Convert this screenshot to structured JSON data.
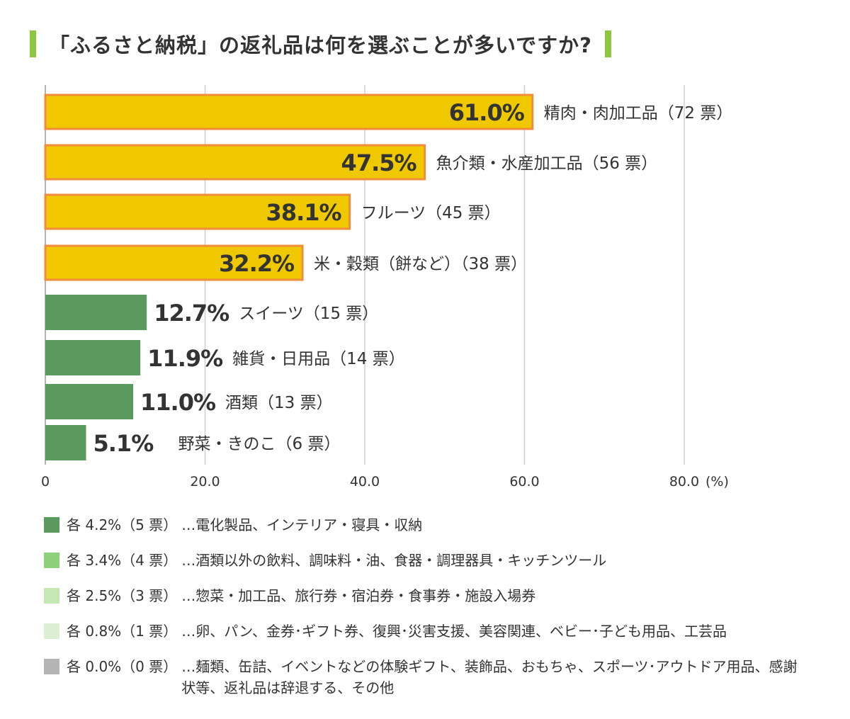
{
  "title": "「ふるさと納税」の返礼品は何を選ぶことが多いですか?",
  "colors": {
    "accent": "#8dc63f",
    "top_bar_fill": "#f0c800",
    "top_bar_stroke": "#f08c3c",
    "other_bar_fill": "#5a9a5f",
    "gridline": "#d0d0d0",
    "axis": "#999999"
  },
  "chart_data": {
    "type": "bar",
    "orientation": "horizontal",
    "categories": [
      "精肉・肉加工品（72 票）",
      "魚介類・水産加工品（56 票）",
      "フルーツ（45 票）",
      "米・穀類（餅など）（38 票）",
      "スイーツ（15 票）",
      "雑貨・日用品（14 票）",
      "酒類（13 票）",
      "野菜・きのこ（6 票）"
    ],
    "values": [
      61.0,
      47.5,
      38.1,
      32.2,
      12.7,
      11.9,
      11.0,
      5.1
    ],
    "value_labels": [
      "61.0%",
      "47.5%",
      "38.1%",
      "32.2%",
      "12.7%",
      "11.9%",
      "11.0%",
      "5.1%"
    ],
    "highlight": [
      true,
      true,
      true,
      true,
      false,
      false,
      false,
      false
    ],
    "xlim": [
      0,
      80
    ],
    "xticks": [
      0,
      20,
      40,
      60,
      80
    ],
    "xtick_labels": [
      "0",
      "20.0",
      "40.0",
      "60.0",
      "80.0"
    ],
    "xunit": "(%)",
    "grid": true
  },
  "legend": [
    {
      "label": "各 4.2%（5 票）",
      "items": "…電化製品、インテリア・寝具・収納",
      "color": "#5a9a5f"
    },
    {
      "label": "各 3.4%（4 票）",
      "items": "…酒類以外の飲料、調味料・油、食器・調理器具・キッチンツール",
      "color": "#8fd17a"
    },
    {
      "label": "各 2.5%（3 票）",
      "items": "…惣菜・加工品、旅行券・宿泊券・食事券・施設入場券",
      "color": "#c4e8b4"
    },
    {
      "label": "各 0.8%（1 票）",
      "items": "…卵、パン、金券･ギフト券、復興･災害支援、美容関連、ベビー･子ども用品、工芸品",
      "color": "#dcefd2"
    },
    {
      "label": "各 0.0%（0 票）",
      "items": "…麺類、缶詰、イベントなどの体験ギフト、装飾品、おもちゃ、スポーツ･アウトドア用品、感謝状等、返礼品は辞退する、その他",
      "color": "#b4b4b4"
    }
  ]
}
